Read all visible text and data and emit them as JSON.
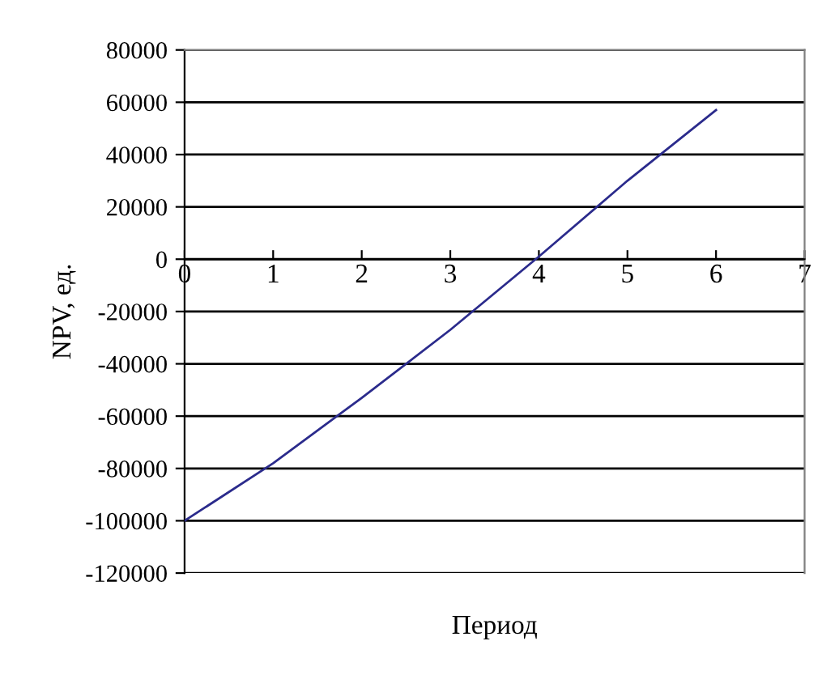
{
  "chart_data": {
    "type": "line",
    "xlabel": "Период",
    "ylabel": "NPV, ед.",
    "x": [
      0,
      1,
      2,
      3,
      4,
      5,
      6
    ],
    "series": [
      {
        "color": "#2b2b8c",
        "values": [
          -100000,
          -78000,
          -53000,
          -27000,
          1000,
          30000,
          57000
        ]
      }
    ],
    "xlim": [
      0,
      7
    ],
    "xticks": [
      0,
      1,
      2,
      3,
      4,
      5,
      6,
      7
    ],
    "ylim": [
      -120000,
      80000
    ],
    "yticks": [
      -120000,
      -100000,
      -80000,
      -60000,
      -40000,
      -20000,
      0,
      20000,
      40000,
      60000,
      80000
    ],
    "grid": "y",
    "legend": false,
    "marker": "none",
    "line_style": "solid"
  }
}
